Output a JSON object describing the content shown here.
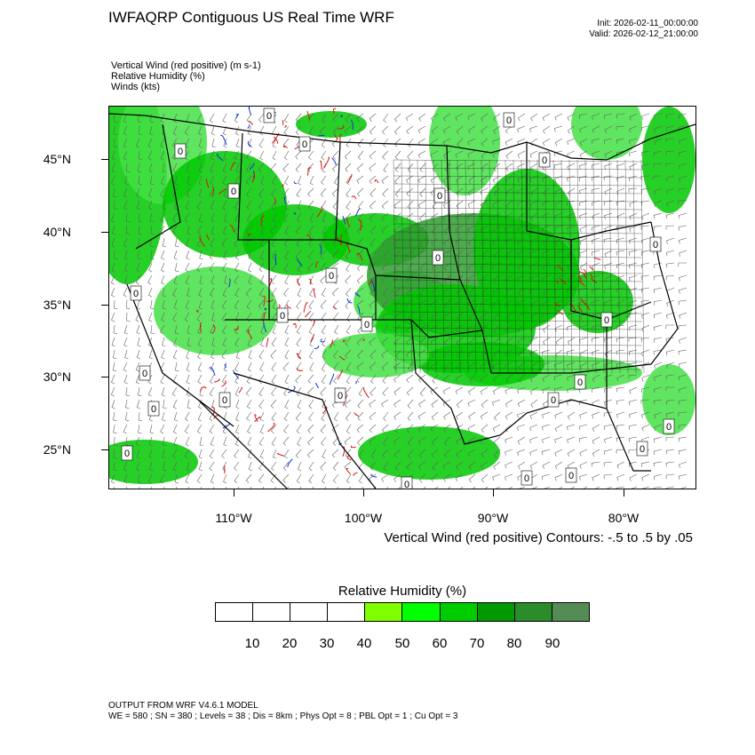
{
  "title": "IWFAQRP Contiguous US Real Time WRF",
  "init": "Init: 2026-02-11_00:00:00",
  "valid": "Valid: 2026-02-12_21:00:00",
  "fields": [
    "Vertical Wind (red positive)   (m s-1)",
    "Relative Humidity   (%)",
    "Winds   (kts)"
  ],
  "lat_labels": [
    "45°N",
    "40°N",
    "35°N",
    "30°N",
    "25°N"
  ],
  "lon_labels": [
    "110°W",
    "100°W",
    "90°W",
    "80°W"
  ],
  "contour_note": "Vertical Wind (red positive) Contours: -.5 to .5 by .05",
  "legend": {
    "title": "Relative Humidity   (%)",
    "colors": [
      "#ffffff",
      "#ffffff",
      "#ffffff",
      "#ffffff",
      "#80ff00",
      "#00ff00",
      "#00cc00",
      "#009900",
      "#2b8c2b",
      "#558b55"
    ],
    "labels": [
      "10",
      "20",
      "30",
      "40",
      "50",
      "60",
      "70",
      "80",
      "90"
    ]
  },
  "contour_zero_label": "0",
  "footer": [
    "OUTPUT FROM WRF V4.6.1 MODEL",
    "WE = 580 ; SN = 380 ; Levels = 38 ; Dis = 8km ; Phys Opt = 8 ; PBL Opt = 1 ; Cu Opt = 3"
  ],
  "map_colors": {
    "rh_green_light": "#44e044",
    "rh_green": "#00c800",
    "rh_green_dark": "#2e9e2e",
    "updraft": "#e01010",
    "downdraft": "#1030e0",
    "barbs": "#606060"
  }
}
